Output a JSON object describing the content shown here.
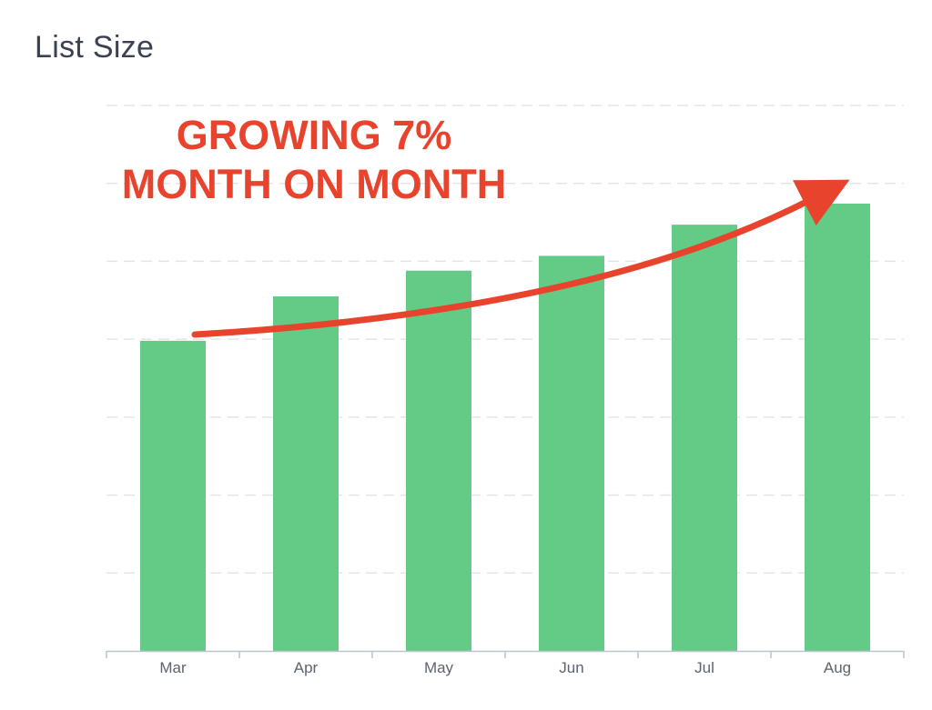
{
  "chart_data": {
    "type": "bar",
    "title": "List Size",
    "categories": [
      "Mar",
      "Apr",
      "May",
      "Jun",
      "Jul",
      "Aug"
    ],
    "values": [
      3.98,
      4.55,
      4.88,
      5.07,
      5.47,
      5.74
    ],
    "ylim": [
      0,
      7
    ],
    "grid": true,
    "y_tick_labels_shown": false,
    "colors": {
      "bar": "#63cb85",
      "annotation": "#e8432d",
      "grid": "#e3e5e8",
      "axis": "#b9c4cf",
      "tick_label": "#5d636e",
      "title": "#3a4150"
    },
    "annotation": {
      "lines": [
        "GROWING 7%",
        "MONTH ON MONTH"
      ],
      "arrow": "upward curved arrow from Mar to Aug"
    }
  }
}
